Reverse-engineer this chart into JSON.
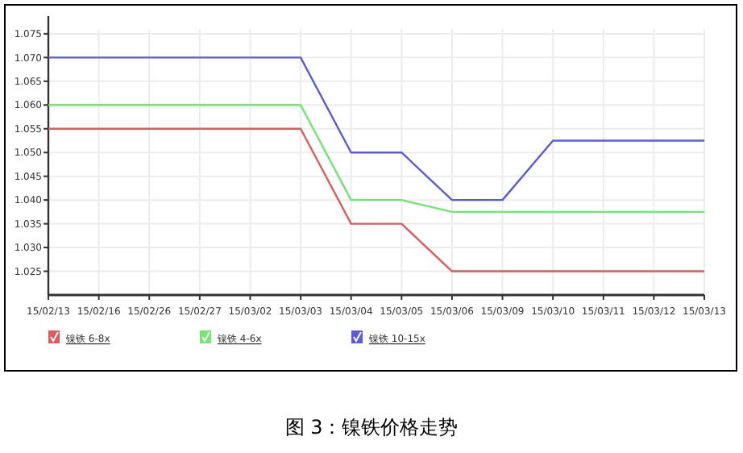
{
  "chart_data": {
    "type": "line",
    "categories": [
      "15/02/13",
      "15/02/16",
      "15/02/26",
      "15/02/27",
      "15/03/02",
      "15/03/03",
      "15/03/04",
      "15/03/05",
      "15/03/06",
      "15/03/09",
      "15/03/10",
      "15/03/11",
      "15/03/12",
      "15/03/13"
    ],
    "series": [
      {
        "name": "镍铁 6-8x",
        "color": "#e05a5a",
        "values": [
          1.055,
          1.055,
          1.055,
          1.055,
          1.055,
          1.055,
          1.035,
          1.035,
          1.025,
          1.025,
          1.025,
          1.025,
          1.025,
          1.025
        ]
      },
      {
        "name": "镍铁 4-6x",
        "color": "#6ee86e",
        "values": [
          1.06,
          1.06,
          1.06,
          1.06,
          1.06,
          1.06,
          1.04,
          1.04,
          1.0375,
          1.0375,
          1.0375,
          1.0375,
          1.0375,
          1.0375
        ]
      },
      {
        "name": "镍铁 10-15x",
        "color": "#5a5ae0",
        "values": [
          1.07,
          1.07,
          1.07,
          1.07,
          1.07,
          1.07,
          1.05,
          1.05,
          1.04,
          1.04,
          1.0525,
          1.0525,
          1.0525,
          1.0525
        ]
      }
    ],
    "ylim": [
      1.02,
      1.076
    ],
    "yticks": [
      {
        "value": 1.025,
        "label": "1.025"
      },
      {
        "value": 1.03,
        "label": "1.030"
      },
      {
        "value": 1.035,
        "label": "1.035"
      },
      {
        "value": 1.04,
        "label": "1.040"
      },
      {
        "value": 1.045,
        "label": "1.045"
      },
      {
        "value": 1.05,
        "label": "1.050"
      },
      {
        "value": 1.055,
        "label": "1.055"
      },
      {
        "value": 1.06,
        "label": "1.060"
      },
      {
        "value": 1.065,
        "label": "1.065"
      },
      {
        "value": 1.07,
        "label": "1.070"
      },
      {
        "value": 1.075,
        "label": "1.075"
      }
    ],
    "grid": true,
    "legend": "bottom",
    "marker": "none",
    "line_style": "solid",
    "annotations": [
      "图 3：镍铁价格走势"
    ]
  }
}
